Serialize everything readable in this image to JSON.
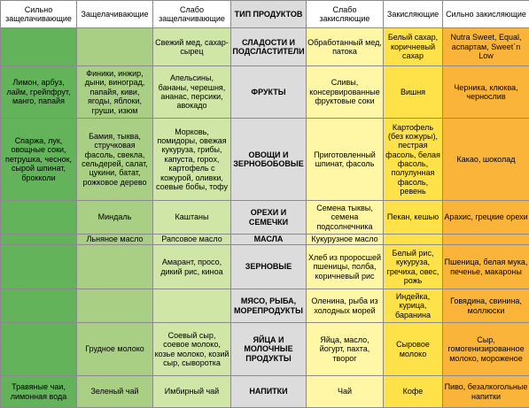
{
  "headers": [
    "Сильно защелачивающие",
    "Защелачивающие",
    "Слабо защелачивающие",
    "ТИП ПРОДУКТОВ",
    "Слабо закисляющие",
    "Закисляющие",
    "Сильно закисляющие"
  ],
  "rows": [
    {
      "type": "СЛАДОСТИ И ПОДСЛАСТИТЕЛИ",
      "cells": [
        "",
        "",
        "Свежий мед, сахар-сырец",
        "Обработанный мед, патока",
        "Белый сахар, коричневый сахар",
        "Nutra Sweet, Equal, аспартам, Sweet`n Low"
      ]
    },
    {
      "type": "ФРУКТЫ",
      "cells": [
        "Лимон, арбуз, лайм, грейпфрут, манго, папайя",
        "Финики, инжир, дыни, виноград, папайя, киви, ягоды, яблоки, груши, изюм",
        "Апельсины, бананы, черешня, ананас, персики, авокадо",
        "Сливы, консервированные фруктовые соки",
        "Вишня",
        "Черника, клюква, чернослив"
      ]
    },
    {
      "type": "ОВОЩИ И ЗЕРНОБОБОВЫЕ",
      "cells": [
        "Спаржа, лук, овощные соки, петрушка, чеснок, сырой шпинат, брокколи",
        "Бамия, тыква, стручковая фасоль, свекла, сельдерей, салат, цукини, батат, рожковое дерево",
        "Морковь, помидоры, овежая кукуруза, грибы, капуста, горох, картофель с кожурой, оливки, соевые бобы, тофу",
        "Приготовленный шпинат, фасоль",
        "Картофель (без кожуры), пестрая фасоль, белая фасоль, полулунная фасоль, ревень",
        "Какао, шоколад"
      ]
    },
    {
      "type": "ОРЕХИ И СЕМЕЧКИ",
      "cells": [
        "",
        "Миндаль",
        "Каштаны",
        "Семена тыквы, семена подсолнечника",
        "Пекан, кешью",
        "Арахис, грецкие орехи"
      ]
    },
    {
      "type": "МАСЛА",
      "cells": [
        "",
        "Льняное масло",
        "Рапсовое масло",
        "Кукурузное масло",
        "",
        ""
      ]
    },
    {
      "type": "ЗЕРНОВЫЕ",
      "cells": [
        "",
        "",
        "Амарант, просо, дикий рис, киноа",
        "Хлеб из проросшей пшеницы, полба, коричневый рис",
        "Белый рис, кукуруза, гречиха, овес, рожь",
        "Пшеница, белая мука, печенье, макароны"
      ]
    },
    {
      "type": "МЯСО, РЫБА, МОРЕПРОДУКТЫ",
      "cells": [
        "",
        "",
        "",
        "Оленина, рыба из холодных морей",
        "Индейка, курица, баранина",
        "Говядина, свинина, моллюски"
      ]
    },
    {
      "type": "ЯЙЦА И МОЛОЧНЫЕ ПРОДУКТЫ",
      "cells": [
        "",
        "Грудное молоко",
        "Соевый сыр, соевое молоко, козье молоко, козий сыр, сыворотка",
        "Яйца, масло, йогурт, пахта, творог",
        "Сыровое молоко",
        "Сыр, гомогенизированное молоко, мороженое"
      ]
    },
    {
      "type": "НАПИТКИ",
      "cells": [
        "Травяные чаи, лимонная вода",
        "Зеленый чай",
        "Имбирный чай",
        "Чай",
        "Кофе",
        "Пиво, безалкогольные напитки"
      ]
    }
  ]
}
